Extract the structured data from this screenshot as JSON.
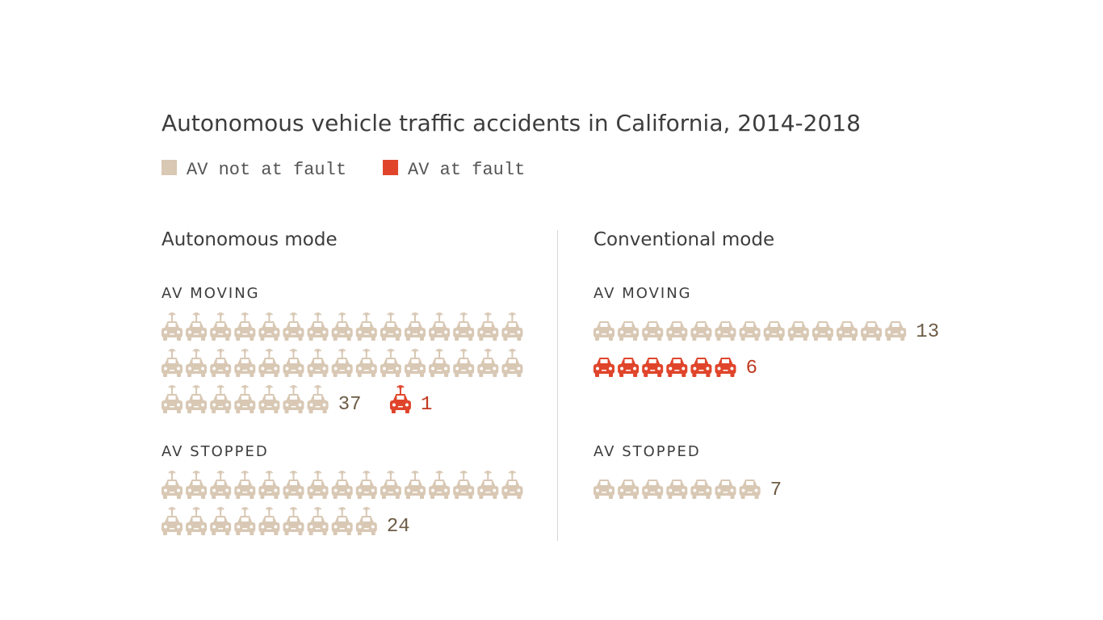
{
  "chart_data": {
    "type": "pictogram",
    "title": "Autonomous vehicle traffic accidents in California, 2014-2018",
    "series": [
      {
        "name": "AV not at fault",
        "color": "#d8c8b4",
        "label_color": "#6e5c46"
      },
      {
        "name": "AV at fault",
        "color": "#e0452b",
        "label_color": "#c0391f"
      }
    ],
    "icons_per_row": 15,
    "panels": [
      {
        "title": "Autonomous mode",
        "icon": "antenna",
        "groups": [
          {
            "label": "AV MOVING",
            "values": [
              37,
              1
            ]
          },
          {
            "label": "AV STOPPED",
            "values": [
              24
            ]
          }
        ]
      },
      {
        "title": "Conventional mode",
        "icon": "car",
        "groups": [
          {
            "label": "AV MOVING",
            "values": [
              13,
              6
            ]
          },
          {
            "label": "AV STOPPED",
            "values": [
              7
            ]
          }
        ]
      }
    ]
  }
}
